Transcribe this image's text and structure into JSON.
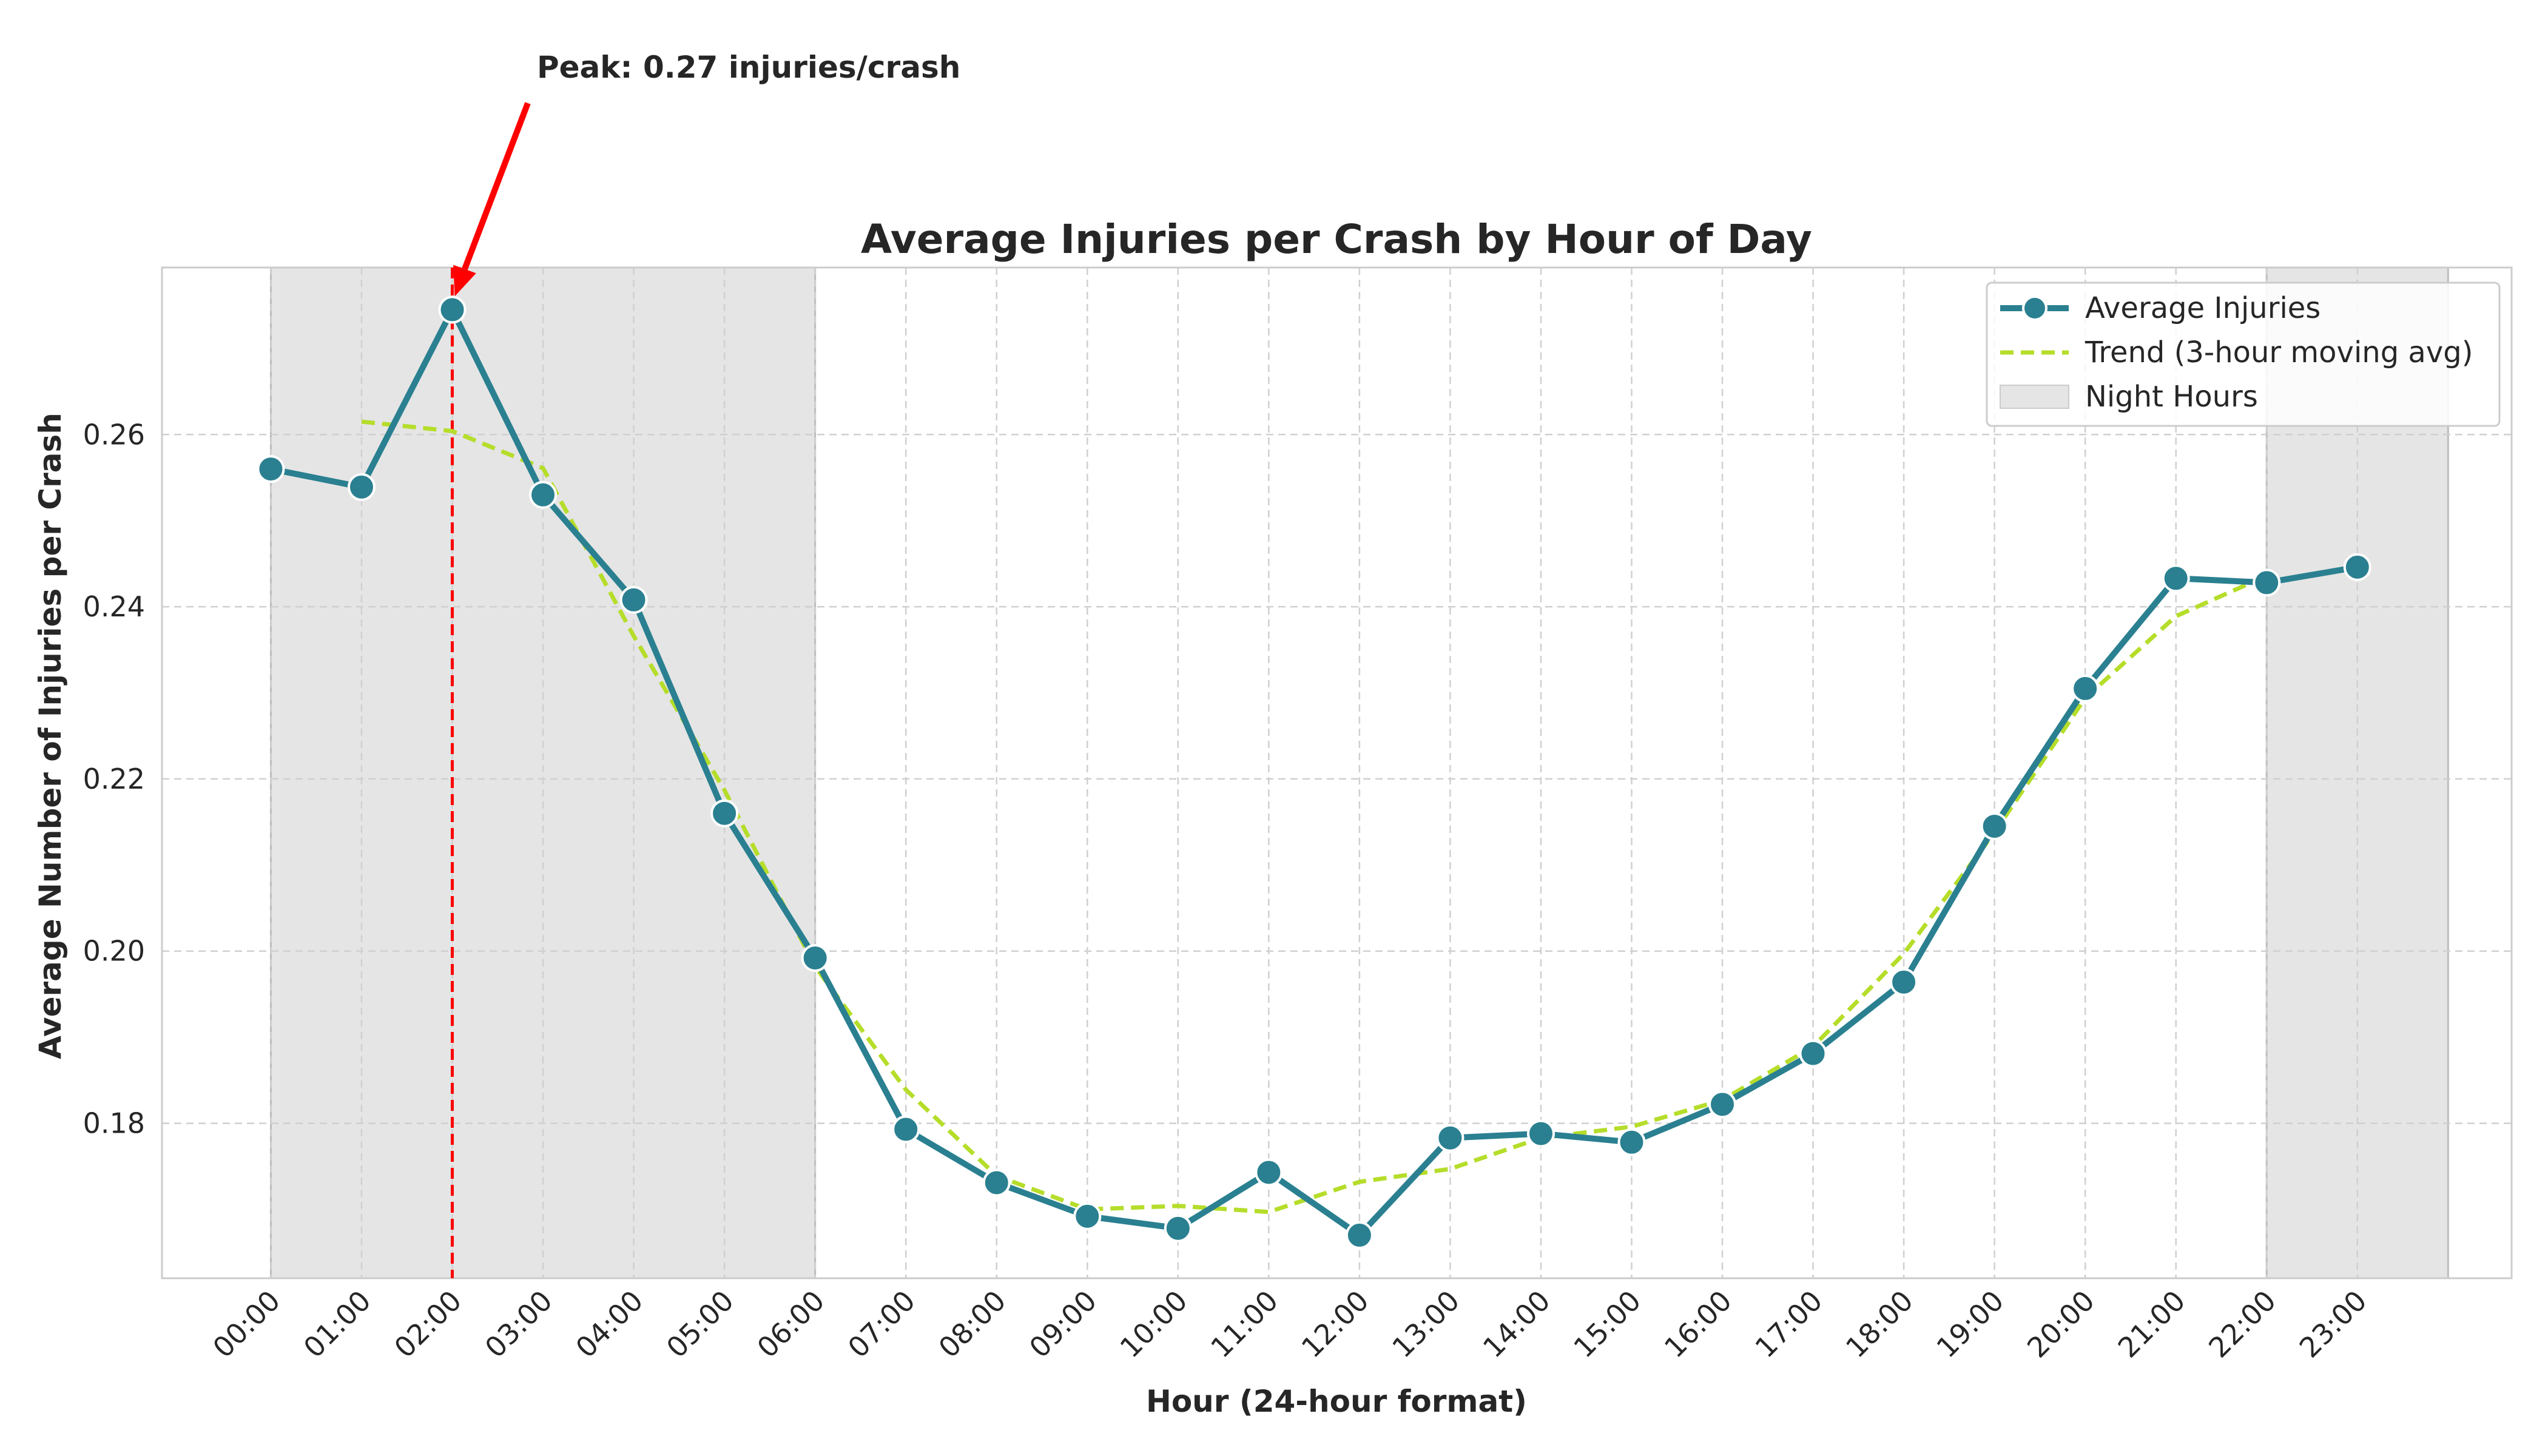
{
  "chart_data": {
    "type": "line",
    "title": "Average Injuries per Crash by Hour of Day",
    "xlabel": "Hour (24-hour format)",
    "ylabel": "Average Number of Injuries per Crash",
    "categories": [
      "00:00",
      "01:00",
      "02:00",
      "03:00",
      "04:00",
      "05:00",
      "06:00",
      "07:00",
      "08:00",
      "09:00",
      "10:00",
      "11:00",
      "12:00",
      "13:00",
      "14:00",
      "15:00",
      "16:00",
      "17:00",
      "18:00",
      "19:00",
      "20:00",
      "21:00",
      "22:00",
      "23:00"
    ],
    "series": [
      {
        "name": "Average Injuries",
        "values": [
          0.256,
          0.2539,
          0.2745,
          0.253,
          0.2408,
          0.216,
          0.1992,
          0.1793,
          0.1731,
          0.1692,
          0.1678,
          0.1743,
          0.167,
          0.1783,
          0.1788,
          0.1778,
          0.1822,
          0.1881,
          0.1964,
          0.2145,
          0.2305,
          0.2433,
          0.2428,
          0.2446
        ],
        "color": "#2a8090"
      },
      {
        "name": "Trend (3-hour moving avg)",
        "values": [
          null,
          0.2615,
          0.2604,
          0.2561,
          0.2366,
          0.2187,
          0.1982,
          0.1839,
          0.1739,
          0.17,
          0.1704,
          0.1697,
          0.1732,
          0.1747,
          0.1783,
          0.1796,
          0.1827,
          0.1889,
          0.1997,
          0.2138,
          0.2294,
          0.2389,
          0.2436,
          null
        ],
        "color": "#b5dd2a"
      }
    ],
    "ytick_labels": [
      "0.18",
      "0.20",
      "0.22",
      "0.24",
      "0.26"
    ],
    "ytick_values": [
      0.18,
      0.2,
      0.22,
      0.24,
      0.26
    ],
    "ylim": [
      0.162,
      0.2794
    ],
    "xlim": [
      -1.2,
      24.7
    ],
    "night_bands": [
      [
        0,
        6
      ],
      [
        22,
        24
      ]
    ],
    "night_label": "Night Hours",
    "night_color": "#e5e5e5",
    "peak_hour": 2,
    "peak_color": "#ff0000",
    "annotation": "Peak: 0.27 injuries/crash",
    "legend_position": "top-right",
    "grid": true
  }
}
